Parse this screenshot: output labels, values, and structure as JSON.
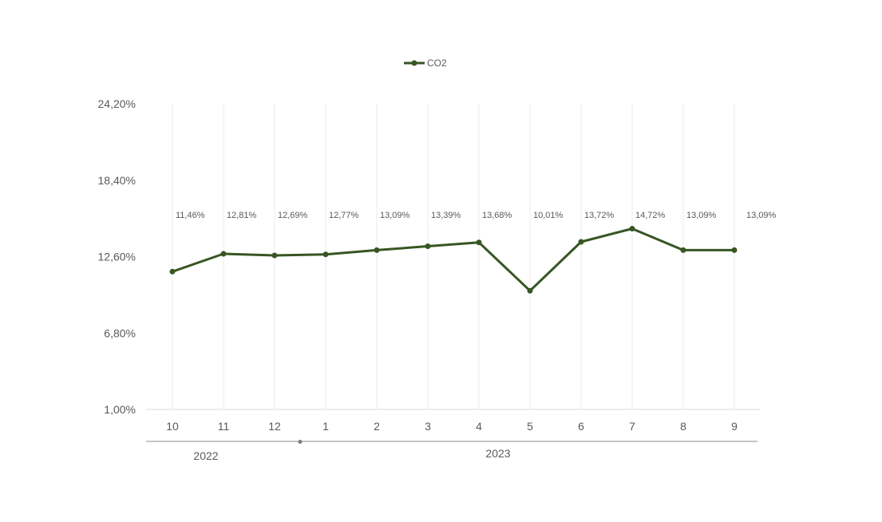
{
  "chart_data": {
    "type": "line",
    "categories": [
      "10",
      "11",
      "12",
      "1",
      "2",
      "3",
      "4",
      "5",
      "6",
      "7",
      "8",
      "9"
    ],
    "category_groups": [
      {
        "label": "2022",
        "categories": [
          "10",
          "11",
          "12"
        ]
      },
      {
        "label": "2023",
        "categories": [
          "1",
          "2",
          "3",
          "4",
          "5",
          "6",
          "7",
          "8",
          "9"
        ]
      }
    ],
    "series": [
      {
        "name": "CO2",
        "color": "#375623",
        "values": [
          11.46,
          12.81,
          12.69,
          12.77,
          13.09,
          13.39,
          13.68,
          10.01,
          13.72,
          14.72,
          13.09,
          13.09
        ],
        "labels": [
          "11,46%",
          "12,81%",
          "12,69%",
          "12,77%",
          "13,09%",
          "13,39%",
          "13,68%",
          "10,01%",
          "13,72%",
          "14,72%",
          "13,09%",
          "13,09%"
        ]
      }
    ],
    "ylim": [
      1.0,
      24.2
    ],
    "yticks": [
      1.0,
      6.8,
      12.6,
      18.4,
      24.2
    ],
    "ytick_labels": [
      "1,00%",
      "6,80%",
      "12,60%",
      "18,40%",
      "24,20%"
    ],
    "legend": {
      "position": "top",
      "entries": [
        "CO2"
      ]
    },
    "grid": {
      "vertical": true,
      "horizontal": false
    },
    "title": "",
    "xlabel": "",
    "ylabel": ""
  }
}
